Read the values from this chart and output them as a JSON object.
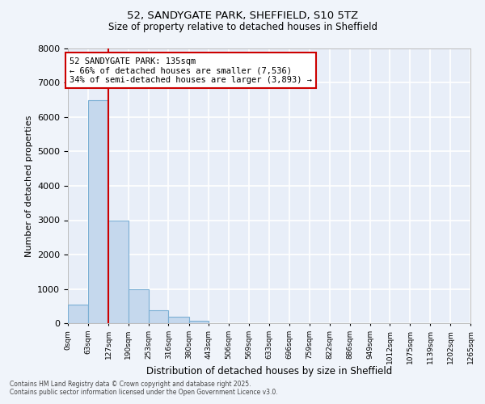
{
  "title_line1": "52, SANDYGATE PARK, SHEFFIELD, S10 5TZ",
  "title_line2": "Size of property relative to detached houses in Sheffield",
  "xlabel": "Distribution of detached houses by size in Sheffield",
  "ylabel": "Number of detached properties",
  "bar_color": "#c5d8ed",
  "bar_edge_color": "#7bafd4",
  "background_color": "#f0f4fa",
  "plot_bg_color": "#e8eef8",
  "grid_color": "#ffffff",
  "bin_labels": [
    "0sqm",
    "63sqm",
    "127sqm",
    "190sqm",
    "253sqm",
    "316sqm",
    "380sqm",
    "443sqm",
    "506sqm",
    "569sqm",
    "633sqm",
    "696sqm",
    "759sqm",
    "822sqm",
    "886sqm",
    "949sqm",
    "1012sqm",
    "1075sqm",
    "1139sqm",
    "1202sqm",
    "1265sqm"
  ],
  "bin_edges": [
    0,
    63,
    127,
    190,
    253,
    316,
    380,
    443,
    506,
    569,
    633,
    696,
    759,
    822,
    886,
    949,
    1012,
    1075,
    1139,
    1202,
    1265
  ],
  "bar_heights": [
    550,
    6500,
    3000,
    1000,
    380,
    180,
    70,
    0,
    0,
    0,
    0,
    0,
    0,
    0,
    0,
    0,
    0,
    0,
    0,
    0
  ],
  "vline_x": 127,
  "vline_color": "#cc0000",
  "annotation_title": "52 SANDYGATE PARK: 135sqm",
  "annotation_line2": "← 66% of detached houses are smaller (7,536)",
  "annotation_line3": "34% of semi-detached houses are larger (3,893) →",
  "annotation_box_color": "#cc0000",
  "ylim": [
    0,
    8000
  ],
  "yticks": [
    0,
    1000,
    2000,
    3000,
    4000,
    5000,
    6000,
    7000,
    8000
  ],
  "footer_line1": "Contains HM Land Registry data © Crown copyright and database right 2025.",
  "footer_line2": "Contains public sector information licensed under the Open Government Licence v3.0."
}
